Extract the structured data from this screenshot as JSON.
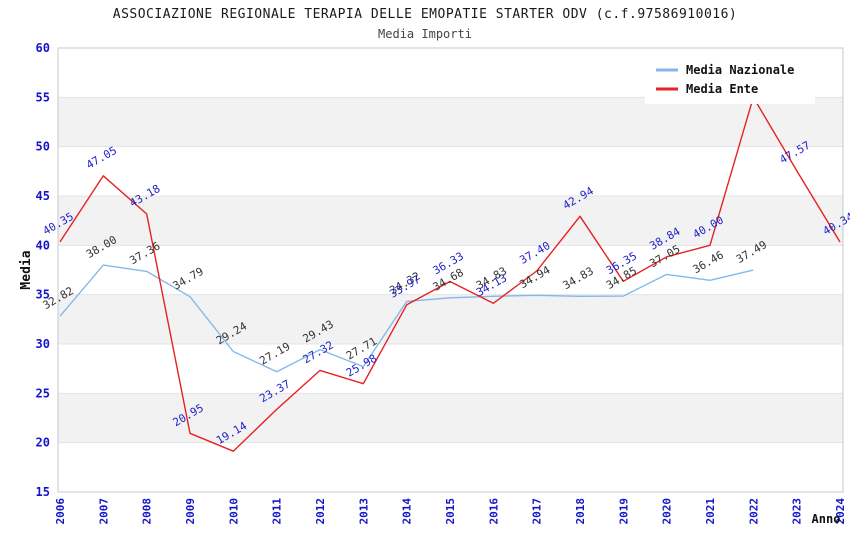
{
  "page": {
    "title": "ASSOCIAZIONE REGIONALE TERAPIA DELLE EMOPATIE STARTER ODV (c.f.97586910016)",
    "subtitle": "Media Importi"
  },
  "colors": {
    "nazionale_line": "#85B8EA",
    "ente_line": "#E62222",
    "nazionale_label": "#333333",
    "ente_label": "#2222CC",
    "axis_tick": "#1414CC",
    "axis_title": "#111111",
    "band_gray": "#F2F2F2",
    "gridline": "#E4E4E4",
    "plot_border": "#C8C8C8",
    "legend_bg": "#FFFFFF",
    "legend_text": "#111111"
  },
  "chart_data": {
    "type": "line",
    "title": "ASSOCIAZIONE REGIONALE TERAPIA DELLE EMOPATIE STARTER ODV (c.f.97586910016)",
    "subtitle": "Media Importi",
    "xlabel": "Anno",
    "ylabel": "Media",
    "ylim": [
      15,
      60
    ],
    "yticks": [
      15,
      20,
      25,
      30,
      35,
      40,
      45,
      50,
      55,
      60
    ],
    "xticks": [
      2006,
      2007,
      2008,
      2009,
      2010,
      2011,
      2012,
      2013,
      2014,
      2015,
      2016,
      2017,
      2018,
      2019,
      2020,
      2021,
      2022,
      2023,
      2024
    ],
    "grid": "horizontal-bands-alternating",
    "legend_position": "top-right",
    "legend": [
      "Media Nazionale",
      "Media Ente"
    ],
    "series": [
      {
        "name": "Media Nazionale",
        "line_color": "#85B8EA",
        "label_color": "#333333",
        "x": [
          2006,
          2007,
          2008,
          2009,
          2010,
          2011,
          2012,
          2013,
          2014,
          2015,
          2016,
          2017,
          2018,
          2019,
          2020,
          2021,
          2022
        ],
        "values": [
          32.82,
          38.0,
          37.36,
          34.79,
          29.24,
          27.19,
          29.43,
          27.71,
          34.32,
          34.68,
          34.83,
          34.94,
          34.83,
          34.85,
          37.05,
          36.46,
          37.49
        ],
        "labels": [
          "32.82",
          "38.00",
          "37.36",
          "34.79",
          "29.24",
          "27.19",
          "29.43",
          "27.71",
          "34.32",
          "34.68",
          "34.83",
          "34.94",
          "34.83",
          "34.85",
          "37.05",
          "36.46",
          "37.49"
        ]
      },
      {
        "name": "Media Ente",
        "line_color": "#E62222",
        "label_color": "#2222CC",
        "x": [
          2006,
          2007,
          2008,
          2009,
          2010,
          2011,
          2012,
          2013,
          2014,
          2015,
          2016,
          2017,
          2018,
          2019,
          2020,
          2021,
          2022,
          2023,
          2024
        ],
        "values": [
          40.35,
          47.05,
          43.18,
          20.95,
          19.14,
          23.37,
          27.32,
          25.98,
          33.97,
          36.33,
          34.13,
          37.4,
          42.94,
          36.35,
          38.84,
          40.0,
          55.0,
          47.57,
          40.34
        ],
        "labels": [
          "40.35",
          "47.05",
          "43.18",
          "20.95",
          "19.14",
          "23.37",
          "27.32",
          "25.98",
          "33.97",
          "36.33",
          "34.13",
          "37.40",
          "42.94",
          "36.35",
          "38.84",
          "40.00",
          null,
          "47.57",
          "40.34"
        ]
      }
    ]
  }
}
